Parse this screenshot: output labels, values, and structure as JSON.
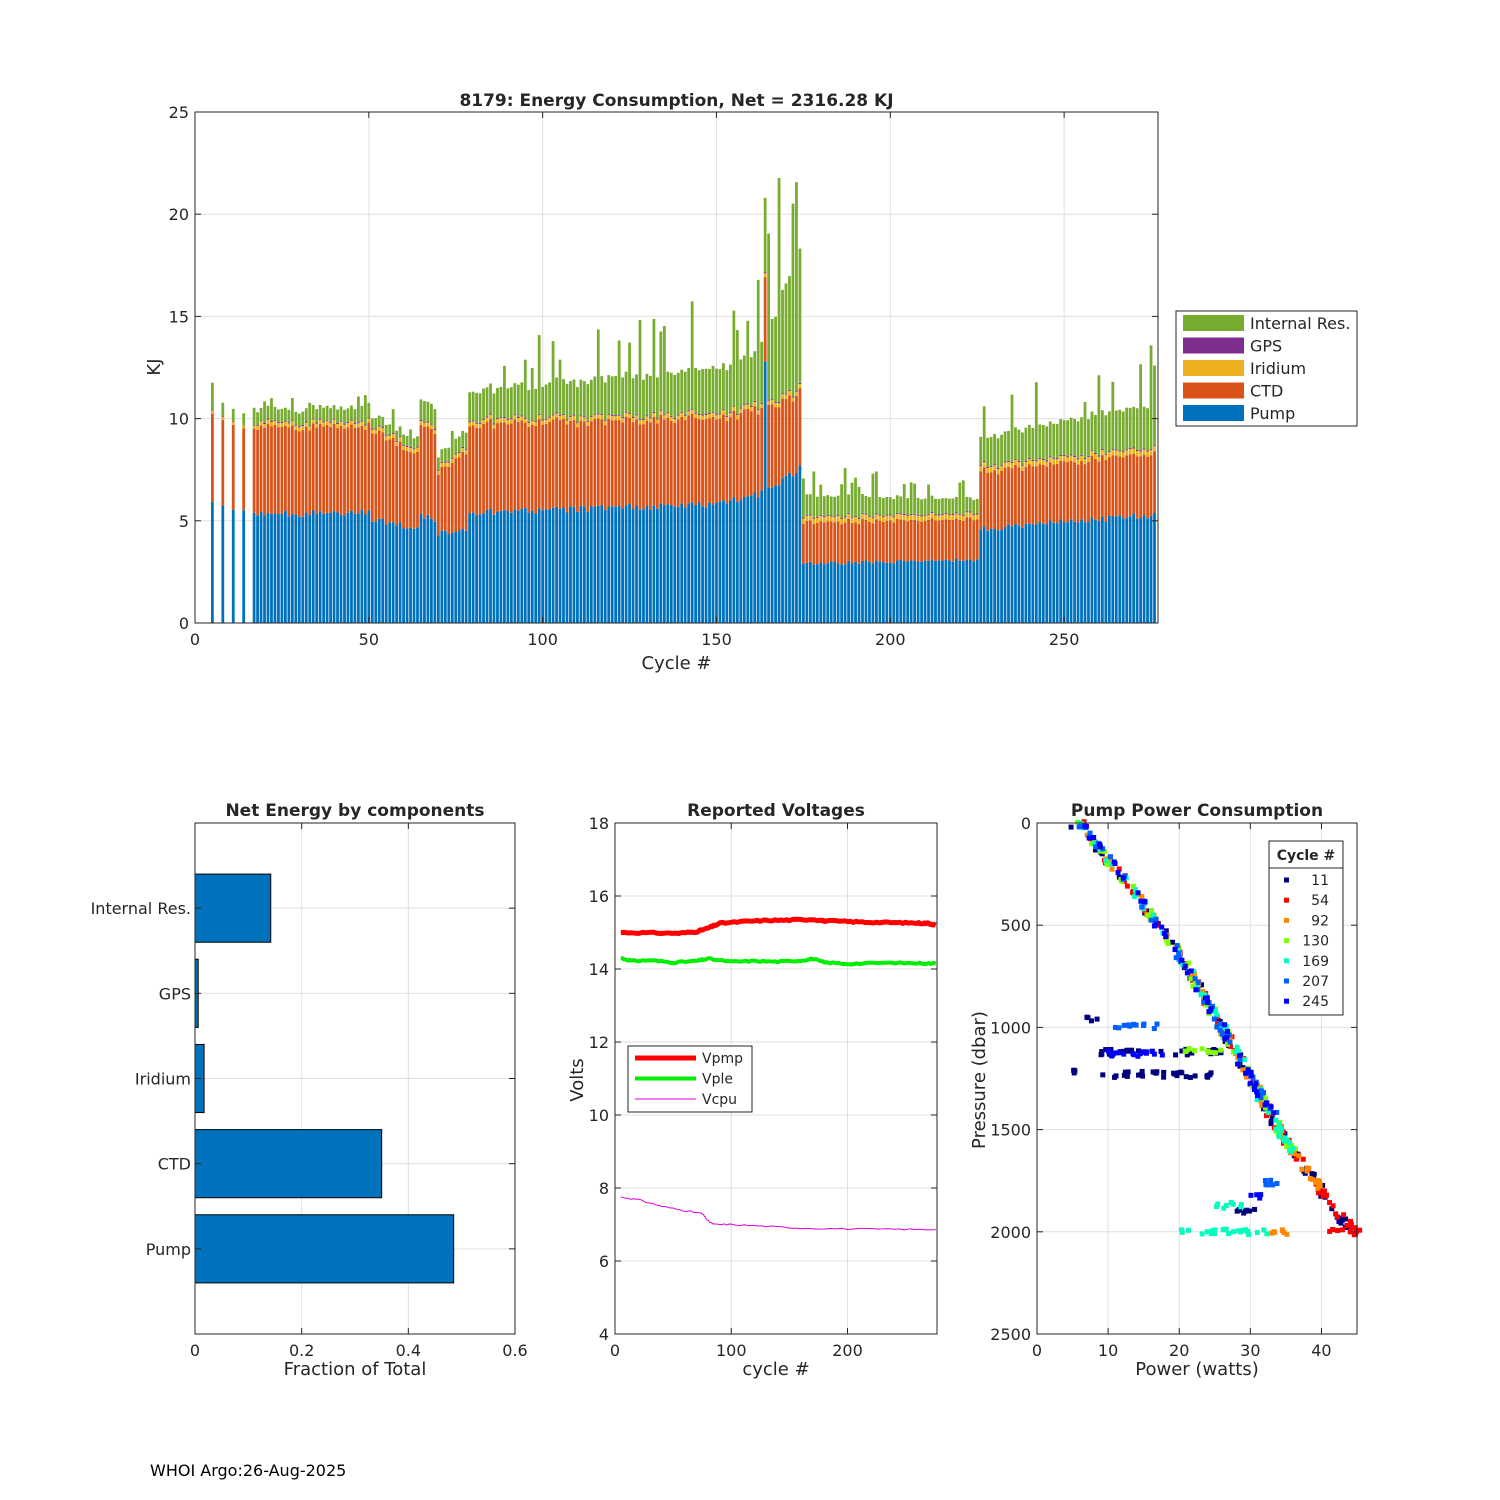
{
  "footer": "WHOI Argo:26-Aug-2025",
  "chart_data": [
    {
      "id": "energy",
      "type": "bar",
      "stacked": true,
      "title": "8179: Energy Consumption,  Net = 2316.28 KJ",
      "xlabel": "Cycle #",
      "ylabel": "KJ",
      "xlim": [
        0,
        277
      ],
      "ylim": [
        0,
        25
      ],
      "xticks": [
        0,
        50,
        100,
        150,
        200,
        250
      ],
      "yticks": [
        0,
        5,
        10,
        15,
        20,
        25
      ],
      "grid": true,
      "legend_position": "right",
      "legend": [
        "Internal Res.",
        "GPS",
        "Iridium",
        "CTD",
        "Pump"
      ],
      "colors": {
        "Pump": "#0072bd",
        "CTD": "#d95319",
        "Iridium": "#edb120",
        "GPS": "#7e2f8e",
        "Internal Res.": "#77ac30"
      },
      "segments": [
        {
          "from": 5,
          "to": 17,
          "step": 3,
          "pump": [
            5.8,
            5.5
          ],
          "ctd": [
            4.2,
            4.1
          ],
          "irid": [
            0.15,
            0.15
          ],
          "gps": [
            0.03,
            0.03
          ],
          "ir": [
            0.7,
            0.5
          ]
        },
        {
          "from": 18,
          "to": 50,
          "step": 1,
          "pump": [
            5.3,
            5.4
          ],
          "ctd": [
            4.3,
            4.2
          ],
          "irid": [
            0.2,
            0.2
          ],
          "gps": [
            0.05,
            0.05
          ],
          "ir": [
            0.6,
            0.7
          ]
        },
        {
          "from": 51,
          "to": 64,
          "step": 1,
          "pump": [
            5.1,
            4.6
          ],
          "ctd": [
            4.4,
            3.6
          ],
          "irid": [
            0.2,
            0.2
          ],
          "gps": [
            0.05,
            0.05
          ],
          "ir": [
            0.5,
            0.5
          ]
        },
        {
          "from": 65,
          "to": 69,
          "step": 1,
          "pump": [
            5.2,
            5.1
          ],
          "ctd": [
            4.4,
            4.4
          ],
          "irid": [
            0.2,
            0.2
          ],
          "gps": [
            0.05,
            0.05
          ],
          "ir": [
            1.0,
            1.0
          ]
        },
        {
          "from": 70,
          "to": 78,
          "step": 1,
          "pump": [
            4.4,
            4.6
          ],
          "ctd": [
            3.0,
            3.8
          ],
          "irid": [
            0.2,
            0.2
          ],
          "gps": [
            0.05,
            0.05
          ],
          "ir": [
            0.6,
            0.8
          ]
        },
        {
          "from": 79,
          "to": 150,
          "step": 1,
          "pump": [
            5.4,
            5.8
          ],
          "ctd": [
            4.3,
            4.2
          ],
          "irid": [
            0.2,
            0.2
          ],
          "gps": [
            0.05,
            0.05
          ],
          "ir": [
            1.4,
            2.2
          ]
        },
        {
          "from": 151,
          "to": 161,
          "step": 1,
          "pump": [
            5.9,
            6.3
          ],
          "ctd": [
            4.1,
            4.2
          ],
          "irid": [
            0.2,
            0.2
          ],
          "gps": [
            0.05,
            0.05
          ],
          "ir": [
            2.2,
            2.4
          ]
        },
        {
          "from": 162,
          "to": 174,
          "step": 1,
          "pump": [
            6.3,
            7.6
          ],
          "ctd": [
            4.1,
            3.7
          ],
          "irid": [
            0.2,
            0.2
          ],
          "gps": [
            0.05,
            0.05
          ],
          "ir": [
            2.6,
            6.6
          ]
        },
        {
          "from": 175,
          "to": 225,
          "step": 1,
          "pump": [
            2.9,
            3.1
          ],
          "ctd": [
            2.0,
            2.0
          ],
          "irid": [
            0.25,
            0.25
          ],
          "gps": [
            0.05,
            0.05
          ],
          "ir": [
            1.0,
            0.7
          ]
        },
        {
          "from": 226,
          "to": 276,
          "step": 1,
          "pump": [
            4.6,
            5.3
          ],
          "ctd": [
            2.8,
            3.0
          ],
          "irid": [
            0.25,
            0.25
          ],
          "gps": [
            0.05,
            0.05
          ],
          "ir": [
            1.4,
            2.1
          ]
        }
      ],
      "notable_cycles": [
        {
          "cycle": 164,
          "pump": 12.8,
          "total": 20.8
        }
      ]
    },
    {
      "id": "components",
      "type": "bar",
      "orientation": "horizontal",
      "title": "Net Energy by components",
      "xlabel": "Fraction of Total",
      "xlim": [
        0,
        0.6
      ],
      "xticks": [
        0,
        0.2,
        0.4,
        0.6
      ],
      "categories": [
        "Internal Res.",
        "GPS",
        "Iridium",
        "CTD",
        "Pump"
      ],
      "values": [
        0.142,
        0.006,
        0.017,
        0.35,
        0.485
      ],
      "color": "#0072bd"
    },
    {
      "id": "voltages",
      "type": "line",
      "title": "Reported Voltages",
      "xlabel": "cycle #",
      "ylabel": "Volts",
      "xlim": [
        0,
        277
      ],
      "ylim": [
        4,
        18
      ],
      "xticks": [
        0,
        100,
        200
      ],
      "yticks": [
        4,
        6,
        8,
        10,
        12,
        14,
        16,
        18
      ],
      "legend_position": "left",
      "series": [
        {
          "name": "Vpmp",
          "color": "#ff0000",
          "width": 5,
          "x": [
            5,
            30,
            55,
            70,
            80,
            90,
            110,
            130,
            150,
            170,
            180,
            200,
            220,
            240,
            260,
            270,
            276
          ],
          "y": [
            15.0,
            14.99,
            14.98,
            15.02,
            15.12,
            15.25,
            15.3,
            15.33,
            15.34,
            15.36,
            15.32,
            15.3,
            15.28,
            15.27,
            15.26,
            15.25,
            15.2
          ]
        },
        {
          "name": "Vple",
          "color": "#00ee00",
          "width": 4,
          "x": [
            5,
            15,
            30,
            50,
            70,
            80,
            100,
            120,
            140,
            160,
            170,
            180,
            200,
            230,
            260,
            276
          ],
          "y": [
            14.3,
            14.22,
            14.24,
            14.18,
            14.22,
            14.28,
            14.2,
            14.22,
            14.2,
            14.23,
            14.28,
            14.18,
            14.14,
            14.17,
            14.16,
            14.15
          ]
        },
        {
          "name": "Vcpu",
          "color": "#dd00dd",
          "width": 1,
          "x": [
            5,
            20,
            40,
            60,
            75,
            80,
            85,
            100,
            130,
            160,
            200,
            240,
            276
          ],
          "y": [
            7.75,
            7.68,
            7.5,
            7.38,
            7.3,
            7.1,
            7.0,
            7.0,
            6.95,
            6.9,
            6.88,
            6.87,
            6.86
          ]
        }
      ]
    },
    {
      "id": "pump",
      "type": "scatter",
      "title": "Pump Power Consumption",
      "xlabel": "Power (watts)",
      "ylabel": "Pressure (dbar)",
      "xlim": [
        0,
        45
      ],
      "ylim": [
        0,
        2500
      ],
      "yreversed": true,
      "xticks": [
        0,
        10,
        20,
        30,
        40
      ],
      "yticks": [
        0,
        500,
        1000,
        1500,
        2000,
        2500
      ],
      "legend_title": "Cycle #",
      "legend_position": "top-right",
      "series": [
        {
          "name": "11",
          "color": "#00007f",
          "path_x": [
            5,
            14,
            21,
            26,
            30,
            34,
            38,
            42,
            44
          ],
          "path_y": [
            0,
            350,
            700,
            1000,
            1250,
            1500,
            1700,
            1900,
            2000
          ],
          "shelves": [
            {
              "y": 1120,
              "x0": 9,
              "x1": 26
            },
            {
              "y": 1230,
              "x0": 9,
              "x1": 25
            },
            {
              "y": 960,
              "x0": 7,
              "x1": 9
            },
            {
              "y": 1210,
              "x0": 4.5,
              "x1": 5.5
            },
            {
              "y": 1900,
              "x0": 27,
              "x1": 31
            }
          ]
        },
        {
          "name": "54",
          "color": "#ff0000",
          "path_x": [
            6,
            14,
            21,
            26,
            30,
            34,
            38,
            42,
            45
          ],
          "path_y": [
            0,
            350,
            700,
            1000,
            1250,
            1500,
            1700,
            1900,
            2000
          ],
          "shelves": [
            {
              "y": 2000,
              "x0": 41,
              "x1": 45
            }
          ]
        },
        {
          "name": "92",
          "color": "#ff8800",
          "path_x": [
            6,
            14,
            21,
            26,
            30,
            34,
            38,
            40
          ],
          "path_y": [
            0,
            350,
            700,
            1000,
            1250,
            1500,
            1700,
            1800
          ],
          "shelves": [
            {
              "y": 2000,
              "x0": 33,
              "x1": 37
            }
          ]
        },
        {
          "name": "130",
          "color": "#7fff00",
          "path_x": [
            6,
            14,
            21,
            26,
            30,
            34,
            36
          ],
          "path_y": [
            0,
            350,
            700,
            1000,
            1250,
            1500,
            1600
          ],
          "shelves": [
            {
              "y": 1110,
              "x0": 20,
              "x1": 26
            }
          ]
        },
        {
          "name": "169",
          "color": "#00ffbf",
          "path_x": [
            6,
            14,
            21,
            26,
            30,
            34,
            36
          ],
          "path_y": [
            0,
            350,
            700,
            1000,
            1250,
            1500,
            1600
          ],
          "shelves": [
            {
              "y": 2000,
              "x0": 20,
              "x1": 33
            },
            {
              "y": 1870,
              "x0": 25,
              "x1": 29
            }
          ]
        },
        {
          "name": "207",
          "color": "#0060ff",
          "path_x": [
            6,
            14,
            21,
            26,
            30,
            34
          ],
          "path_y": [
            0,
            350,
            700,
            1000,
            1250,
            1450
          ],
          "shelves": [
            {
              "y": 995,
              "x0": 11,
              "x1": 17
            },
            {
              "y": 1760,
              "x0": 31,
              "x1": 34
            }
          ]
        },
        {
          "name": "245",
          "color": "#0000ff",
          "path_x": [
            6,
            14,
            21,
            26,
            30,
            33
          ],
          "path_y": [
            0,
            350,
            700,
            1000,
            1250,
            1420
          ],
          "shelves": [
            {
              "y": 1130,
              "x0": 10,
              "x1": 18
            },
            {
              "y": 1820,
              "x0": 30,
              "x1": 32
            }
          ]
        }
      ]
    }
  ]
}
